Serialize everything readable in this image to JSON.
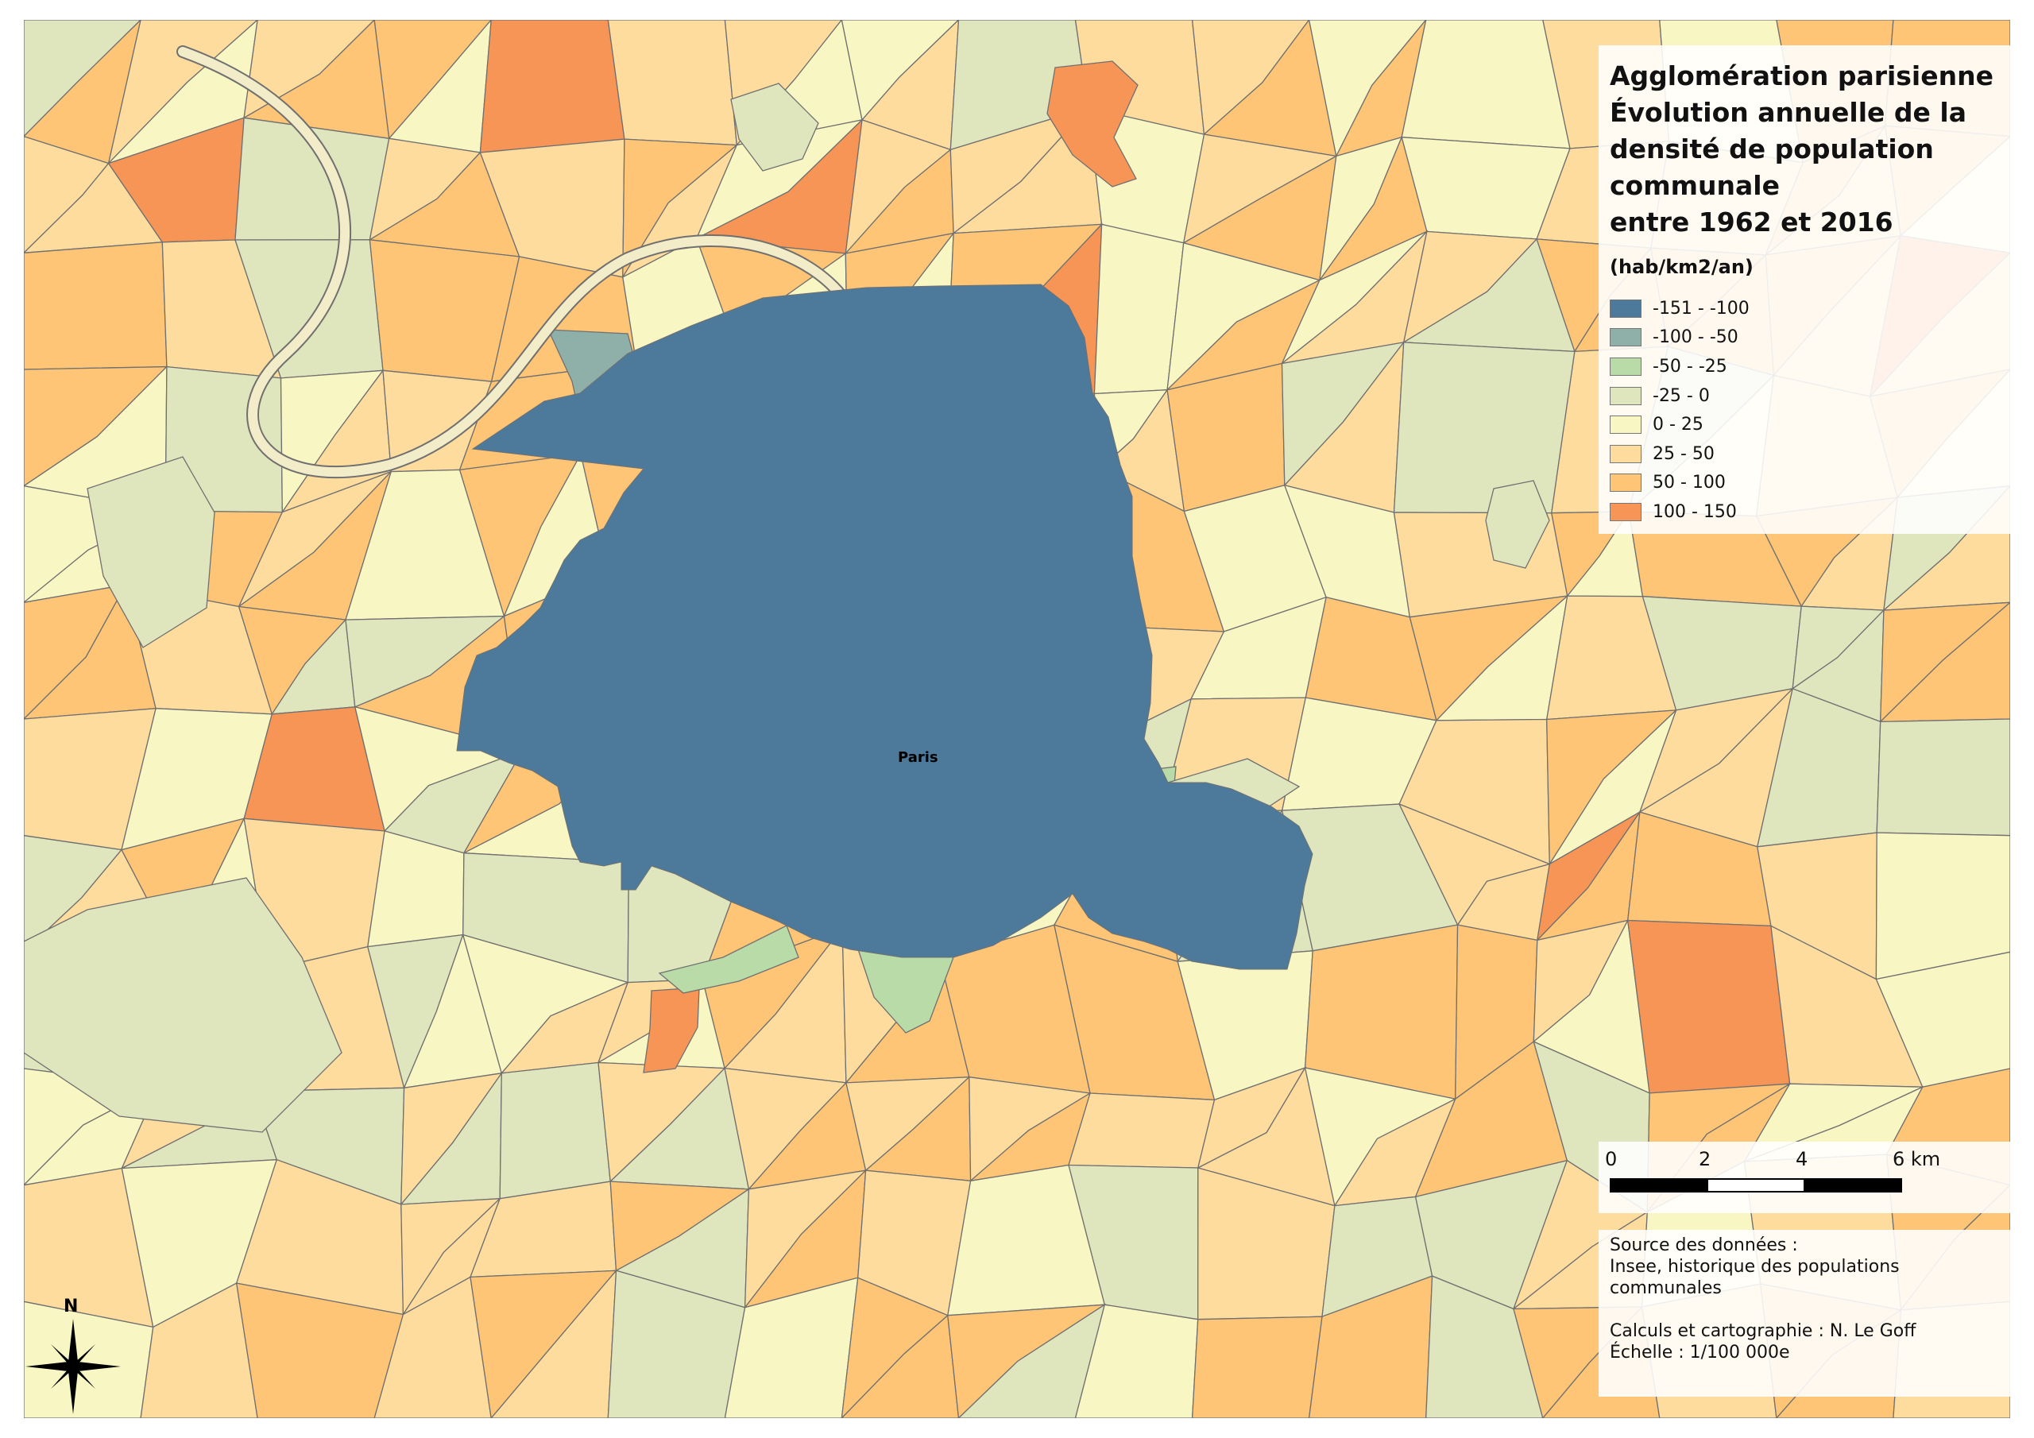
{
  "map": {
    "title_lines": [
      "Agglomération parisienne",
      "Évolution annuelle de la",
      "densité de population",
      "communale",
      "entre 1962 et 2016"
    ],
    "unit": "(hab/km2/an)",
    "city_label": "Paris",
    "legend": [
      {
        "label": "-151 - -100",
        "color": "#4d7a9b"
      },
      {
        "label": "-100 - -50",
        "color": "#8eb0a8"
      },
      {
        "label": "-50 - -25",
        "color": "#b9dba8"
      },
      {
        "label": "-25 - 0",
        "color": "#dfe6bd"
      },
      {
        "label": "0 - 25",
        "color": "#f8f6c2"
      },
      {
        "label": "25 - 50",
        "color": "#fddc9e"
      },
      {
        "label": "50 - 100",
        "color": "#fec576"
      },
      {
        "label": "100 - 150",
        "color": "#f79557"
      }
    ],
    "scale_bar": {
      "ticks": [
        "0",
        "2",
        "4",
        "6 km"
      ]
    },
    "source": {
      "heading": "Source des données :",
      "text": [
        "Insee, historique des populations",
        "communales"
      ],
      "credits": "Calculs et cartographie : N. Le Goff",
      "scale": "Échelle : 1/100 000e"
    },
    "north_label": "N",
    "colors": {
      "border": "#707070",
      "water": "#e9e2c0"
    }
  }
}
